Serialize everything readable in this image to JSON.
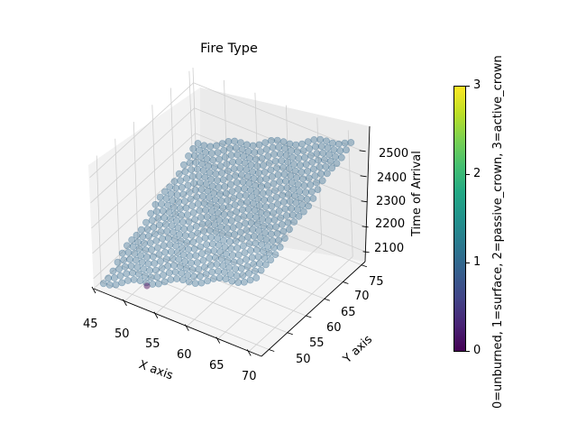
{
  "chart_data": {
    "type": "scatter3d",
    "title": "Fire Type",
    "xlabel": "X axis",
    "ylabel": "Y axis",
    "zlabel": "Time of Arrival",
    "xlim": [
      45,
      72
    ],
    "ylim": [
      48,
      76
    ],
    "zlim": [
      2060,
      2560
    ],
    "x_ticks": [
      "45",
      "50",
      "55",
      "60",
      "65",
      "70"
    ],
    "y_ticks": [
      "50",
      "55",
      "60",
      "65",
      "70",
      "75"
    ],
    "z_ticks": [
      "2100",
      "2200",
      "2300",
      "2400",
      "2500"
    ],
    "grid": true,
    "marker_alpha": 0.4,
    "description": "Regular grid of points over X 45-72, Y 48-76 forming a sloped surface of Time of Arrival rising from ~2080 at low X/Y to ~2530 at high X/Y; nearly all points colored as 1=surface, one point at the lowest corner colored 0=unburned.",
    "series": [
      {
        "name": "surface (1)",
        "color": "#31688e",
        "approx_count": 600,
        "z_range": [
          2080,
          2530
        ]
      },
      {
        "name": "unburned (0)",
        "color": "#440154",
        "points": [
          {
            "x": 48,
            "y": 50,
            "z": 2080
          }
        ]
      }
    ],
    "colorbar": {
      "label": "0=unburned, 1=surface, 2=passive_crown, 3=active_crown",
      "ticks": [
        "0",
        "1",
        "2",
        "3"
      ],
      "range": [
        0,
        3
      ],
      "colormap": "viridis"
    }
  },
  "labels": {
    "title": "Fire Type",
    "xlabel": "X axis",
    "ylabel": "Y axis",
    "zlabel": "Time of Arrival",
    "cbar_label": "0=unburned, 1=surface, 2=passive_crown, 3=active_crown"
  },
  "ticks": {
    "x": [
      "45",
      "50",
      "55",
      "60",
      "65",
      "70"
    ],
    "y": [
      "50",
      "55",
      "60",
      "65",
      "70",
      "75"
    ],
    "z": [
      "2100",
      "2200",
      "2300",
      "2400",
      "2500"
    ],
    "cbar": [
      "0",
      "1",
      "2",
      "3"
    ]
  }
}
